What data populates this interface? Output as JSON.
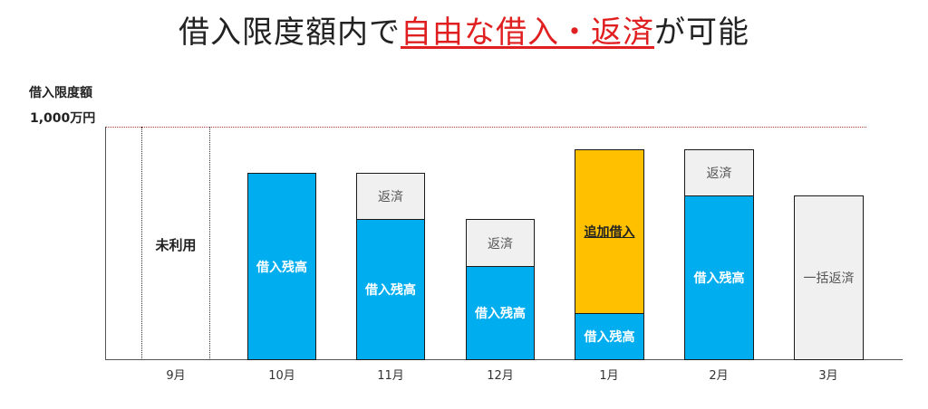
{
  "title": {
    "pre": "借入限度額内で",
    "highlight": "自由な借入・返済",
    "post": "が可能"
  },
  "y_axis": {
    "label": "借入限度額",
    "limit": "1,000万円"
  },
  "months": [
    "9月",
    "10月",
    "11月",
    "12月",
    "1月",
    "2月",
    "3月"
  ],
  "labels": {
    "unused": "未利用",
    "balance": "借入残高",
    "repay": "返済",
    "additional": "追加借入",
    "lump_repay": "一括返済"
  },
  "colors": {
    "balance": "#00aeef",
    "repay": "#f0f0f0",
    "additional": "#ffc000",
    "title_highlight": "#e02020"
  }
}
